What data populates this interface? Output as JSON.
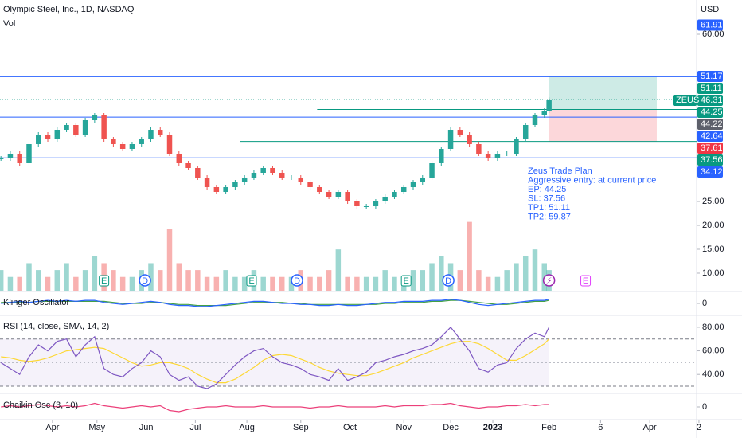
{
  "chart_data": {
    "type": "candlestick",
    "title": "Olympic Steel, Inc., 1D, NASDAQ",
    "subtitle": "Vol",
    "currency": "USD",
    "up_color": "#26a69a",
    "down_color": "#ef5350",
    "x": [
      -22,
      -18,
      -14,
      -10,
      -6,
      -2,
      2,
      6,
      10,
      14,
      18,
      22,
      26,
      30,
      34,
      38,
      42,
      46,
      50,
      54,
      58,
      62,
      66,
      70,
      74,
      78,
      82,
      86,
      90,
      94,
      98,
      102,
      106,
      110,
      114,
      118,
      122,
      126,
      130,
      134,
      138,
      142,
      146,
      150,
      154,
      158,
      162,
      166,
      170,
      174,
      178,
      182,
      186,
      190,
      194,
      198,
      202,
      206,
      210,
      212
    ],
    "close": [
      34,
      35,
      33,
      37,
      39,
      38,
      40,
      41,
      39,
      42,
      43,
      38,
      37,
      36,
      37,
      38,
      40,
      39,
      35,
      33,
      32,
      30,
      28,
      27,
      28,
      29,
      30,
      31,
      32,
      31,
      30,
      30,
      29,
      28,
      27,
      26,
      27,
      25,
      24,
      24,
      25,
      26,
      27,
      28,
      29,
      30,
      33,
      36,
      40,
      39,
      37,
      35,
      34,
      35,
      35,
      38,
      41,
      43,
      44,
      46.31
    ],
    "volume": [
      3,
      2,
      2,
      4,
      3,
      2,
      3,
      4,
      2,
      3,
      5,
      4,
      3,
      2,
      2,
      3,
      4,
      3,
      9,
      4,
      3,
      3,
      2,
      2,
      3,
      2,
      2,
      3,
      2,
      2,
      2,
      2,
      3,
      2,
      2,
      3,
      6,
      2,
      2,
      2,
      2,
      3,
      2,
      2,
      3,
      3,
      4,
      5,
      4,
      3,
      10,
      3,
      2,
      2,
      3,
      4,
      5,
      6,
      4,
      3
    ],
    "volume_max": 11,
    "xlim": [
      -22.4,
      275
    ],
    "xticks": [
      {
        "value": 0,
        "label": "Apr"
      },
      {
        "value": 19,
        "label": "May"
      },
      {
        "value": 40,
        "label": "Jun"
      },
      {
        "value": 61,
        "label": "Jul"
      },
      {
        "value": 83,
        "label": "Aug"
      },
      {
        "value": 106,
        "label": "Sep"
      },
      {
        "value": 127,
        "label": "Oct"
      },
      {
        "value": 150,
        "label": "Nov"
      },
      {
        "value": 170,
        "label": "Dec"
      },
      {
        "value": 188,
        "label": "2023"
      },
      {
        "value": 212,
        "label": "Feb"
      },
      {
        "value": 234,
        "label": "6"
      },
      {
        "value": 255,
        "label": "Apr"
      },
      {
        "value": 276,
        "label": "2"
      }
    ],
    "ylim": [
      6.33,
      67.17
    ],
    "yticks": [
      {
        "value": 10,
        "label": "10.00"
      },
      {
        "value": 15,
        "label": "15.00"
      },
      {
        "value": 20,
        "label": "20.00"
      },
      {
        "value": 25,
        "label": "25.00"
      },
      {
        "value": 60,
        "label": "60.00"
      }
    ],
    "levels": [
      {
        "value": 61.91,
        "color": "#2962ff",
        "start": -22.4
      },
      {
        "value": 51.11,
        "color": "#2962ff",
        "start": -22.4
      },
      {
        "value": 44.25,
        "color": "#089981",
        "start": 113
      },
      {
        "value": 42.64,
        "color": "#2962ff",
        "start": -22.4
      },
      {
        "value": 37.56,
        "color": "#089981",
        "start": 80
      },
      {
        "value": 34.12,
        "color": "#2962ff",
        "start": -22.4
      }
    ],
    "price_labels": [
      {
        "value": 61.91,
        "color": "#2962ff"
      },
      {
        "value": 51.17,
        "color": "#2962ff"
      },
      {
        "value": 51.11,
        "color": "#089981"
      },
      {
        "value": 46.31,
        "color": "#089981"
      },
      {
        "value": 44.25,
        "color": "#089981"
      },
      {
        "value": 44.22,
        "color": "#5d606b"
      },
      {
        "value": 42.64,
        "color": "#2962ff"
      },
      {
        "value": 37.61,
        "color": "#f23645"
      },
      {
        "value": 37.56,
        "color": "#089981"
      },
      {
        "value": 34.12,
        "color": "#2962ff"
      }
    ],
    "current_price_tag": "ZEUS",
    "trade_box": {
      "entry": 44.25,
      "stop": 37.56,
      "target": 51.11,
      "start": 212,
      "end": 258
    },
    "annotation": [
      "Zeus Trade Plan",
      "Aggressive entry: at current price",
      "EP: 44.25",
      "SL: 37.56",
      "TP1: 51.11",
      "TP2: 59.87"
    ],
    "events": [
      {
        "x": 22,
        "label": "E",
        "color": "#089981"
      },
      {
        "x": 39.5,
        "label": "D",
        "color": "#2962ff"
      },
      {
        "x": 85,
        "label": "E",
        "color": "#089981"
      },
      {
        "x": 104.4,
        "label": "D",
        "color": "#2962ff"
      },
      {
        "x": 151,
        "label": "E",
        "color": "#089981"
      },
      {
        "x": 169,
        "label": "D",
        "color": "#2962ff"
      },
      {
        "x": 212,
        "label": "⚡",
        "color": "#9c27b0"
      },
      {
        "x": 227.6,
        "label": "E",
        "color": "#e040fb"
      }
    ],
    "klinger": {
      "title": "Klinger Oscillator",
      "ylim": [
        -10,
        10
      ],
      "yticks": [
        0
      ],
      "color": "#2962ff",
      "signal_color": "#43a047",
      "values": [
        0,
        1,
        2,
        1,
        2,
        3,
        2,
        3,
        2,
        3,
        3,
        1,
        0,
        -1,
        0,
        1,
        2,
        1,
        -1,
        -2,
        -2,
        -3,
        -3,
        -2,
        -1,
        0,
        1,
        2,
        2,
        1,
        0,
        0,
        -1,
        -1,
        -2,
        -2,
        -1,
        -2,
        -2,
        -1,
        0,
        1,
        1,
        2,
        2,
        2,
        3,
        3,
        4,
        3,
        1,
        -1,
        -2,
        -1,
        0,
        1,
        2,
        3,
        3,
        4
      ],
      "signal": [
        1,
        1,
        1,
        1,
        2,
        2,
        2,
        2,
        2,
        2,
        2,
        2,
        1,
        0,
        0,
        0,
        1,
        1,
        0,
        -1,
        -1,
        -2,
        -2,
        -2,
        -2,
        -1,
        0,
        1,
        1,
        1,
        1,
        0,
        0,
        -1,
        -1,
        -1,
        -1,
        -1,
        -1,
        -1,
        -1,
        0,
        0,
        1,
        1,
        1,
        2,
        2,
        3,
        3,
        2,
        1,
        0,
        -1,
        -1,
        0,
        1,
        2,
        2,
        3
      ]
    },
    "rsi": {
      "title": "RSI (14, close, SMA, 14, 2)",
      "ylim": [
        25.3,
        88.7
      ],
      "yticks": [
        {
          "value": 40,
          "label": "40.00"
        },
        {
          "value": 60,
          "label": "60.00"
        },
        {
          "value": 80,
          "label": "80.00"
        }
      ],
      "bands": [
        30,
        70
      ],
      "color": "#7e57c2",
      "ma_color": "#fdd835",
      "values": [
        50,
        45,
        40,
        55,
        65,
        60,
        68,
        70,
        55,
        65,
        72,
        45,
        40,
        38,
        45,
        50,
        60,
        55,
        40,
        35,
        38,
        30,
        28,
        32,
        40,
        48,
        55,
        60,
        62,
        55,
        50,
        48,
        45,
        40,
        38,
        35,
        45,
        35,
        38,
        42,
        50,
        52,
        55,
        57,
        60,
        62,
        65,
        72,
        80,
        70,
        60,
        45,
        42,
        48,
        50,
        62,
        70,
        75,
        72,
        80
      ],
      "ma": [
        55,
        54,
        52,
        51,
        52,
        54,
        57,
        60,
        61,
        62,
        63,
        62,
        58,
        54,
        50,
        47,
        48,
        50,
        50,
        48,
        45,
        40,
        36,
        33,
        33,
        36,
        41,
        46,
        52,
        56,
        57,
        56,
        53,
        50,
        46,
        43,
        41,
        40,
        39,
        39,
        41,
        44,
        47,
        50,
        54,
        57,
        60,
        63,
        66,
        68,
        68,
        66,
        62,
        57,
        52,
        52,
        56,
        61,
        66,
        70
      ]
    },
    "chaikin": {
      "title": "Chaikin Osc (3, 10)",
      "ylim": [
        -10,
        10
      ],
      "yticks": [
        0
      ],
      "color": "#ec407a",
      "values": [
        0,
        1,
        0,
        1,
        2,
        1,
        0,
        1,
        0,
        1,
        3,
        1,
        0,
        -1,
        0,
        1,
        0,
        1,
        -3,
        -4,
        -2,
        -1,
        0,
        0,
        1,
        0,
        0,
        0,
        1,
        0,
        0,
        0,
        0,
        -1,
        0,
        0,
        1,
        0,
        0,
        0,
        0,
        1,
        0,
        1,
        1,
        1,
        2,
        2,
        3,
        1,
        0,
        -1,
        0,
        0,
        1,
        1,
        2,
        1,
        2,
        2
      ]
    }
  }
}
